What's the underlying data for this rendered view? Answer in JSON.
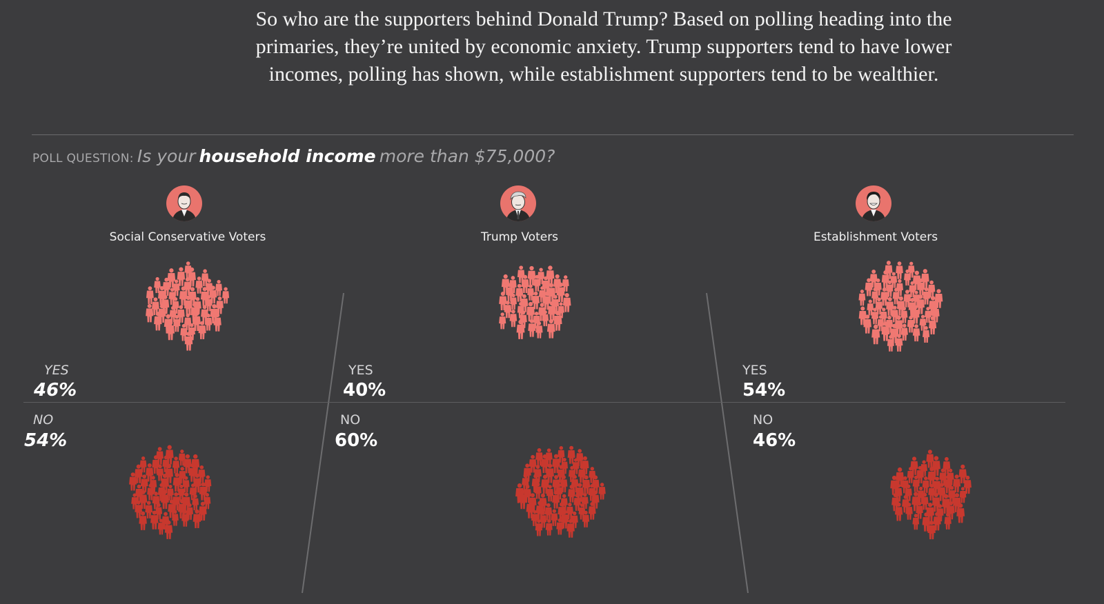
{
  "intro_text": "So who are the supporters behind Donald Trump? Based on polling heading into the primaries, they’re united by economic anxiety. Trump supporters tend to have lower incomes, polling has shown, while establishment supporters tend to be wealthier.",
  "poll": {
    "label": "POLL QUESTION:",
    "question_pre": "Is your",
    "question_emphasis": "household income",
    "question_post": "more than $75,000?"
  },
  "colors": {
    "background": "#3c3c3e",
    "yes_figures": "#f07872",
    "no_figures": "#c8382e",
    "portrait_ring": "#e9746d"
  },
  "chart_data": {
    "type": "pictogram",
    "title": "",
    "categories": [
      "Social Conservative Voters",
      "Trump Voters",
      "Establishment Voters"
    ],
    "series": [
      {
        "name": "YES",
        "values": [
          46,
          40,
          54
        ]
      },
      {
        "name": "NO",
        "values": [
          54,
          60,
          46
        ]
      }
    ],
    "unit": "%",
    "yes_label": "YES",
    "no_label": "NO",
    "yes_pct": [
      "46%",
      "40%",
      "54%"
    ],
    "no_pct": [
      "54%",
      "60%",
      "46%"
    ],
    "portrait_icons": [
      "ted-cruz-portrait-icon",
      "donald-trump-portrait-icon",
      "marco-rubio-portrait-icon"
    ]
  }
}
